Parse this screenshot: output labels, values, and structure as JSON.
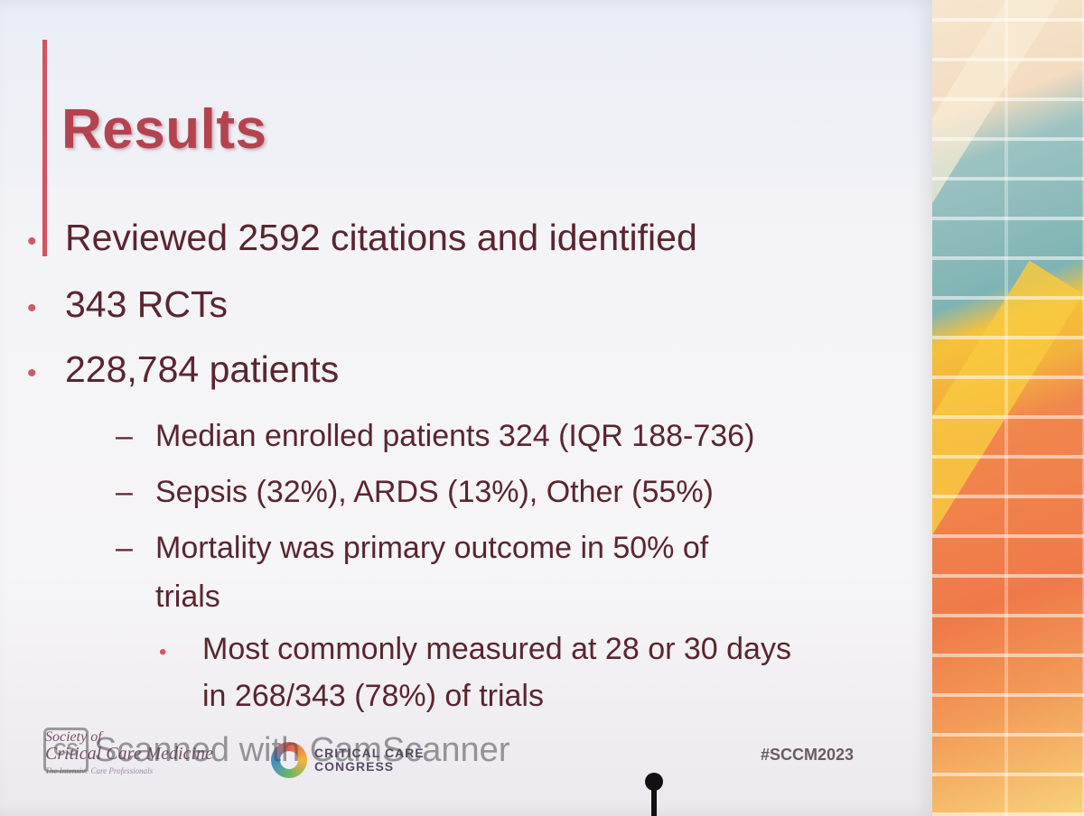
{
  "slide": {
    "title": "Results",
    "bullets": [
      "Reviewed 2592 citations and identified",
      "343 RCTs",
      "228,784 patients"
    ],
    "subbullets": [
      "Median enrolled patients 324 (IQR 188-736)",
      "Sepsis (32%), ARDS (13%), Other (55%)",
      "Mortality was primary outcome in 50% of",
      "trials"
    ],
    "subsubbullet": [
      "Most commonly measured at 28 or 30 days",
      "in 268/343 (78%) of trials"
    ]
  },
  "footer": {
    "sccm_logo_line1": "Society of",
    "sccm_logo_line2": "Critical Care Medicine",
    "sccm_logo_line3": "The Intensive Care Professionals",
    "congress_line1": "CRITICAL CARE",
    "congress_line2": "CONGRESS",
    "hashtag": "#SCCM2023"
  },
  "watermark": {
    "badge": "CS",
    "text": "Scanned with CamScanner"
  },
  "colors": {
    "title": "#b4434f",
    "body_text": "#5a2530",
    "accent": "#d9505f"
  }
}
